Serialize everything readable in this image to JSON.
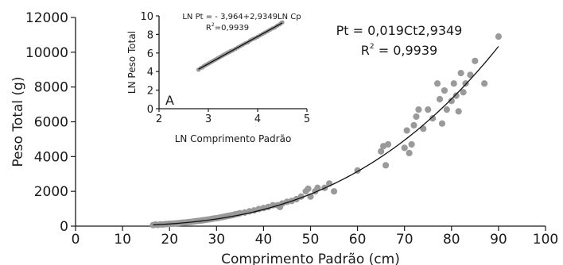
{
  "chart_data": [
    {
      "type": "scatter",
      "xlabel": "Comprimento Padrão (cm)",
      "ylabel": "Peso Total (g)",
      "xlim": [
        0,
        100
      ],
      "ylim": [
        0,
        12000
      ],
      "xticks": [
        "0",
        "10",
        "20",
        "30",
        "40",
        "50",
        "60",
        "70",
        "80",
        "90",
        "100"
      ],
      "yticks": [
        "0",
        "2000",
        "4000",
        "6000",
        "8000",
        "10000",
        "12000"
      ],
      "equation_line1": "Pt = 0,019Ct2,9349",
      "equation_r2_prefix": "R",
      "equation_r2_sup": "2",
      "equation_r2_value": " = 0,9939",
      "fit": {
        "type": "power",
        "a": 0.019,
        "b": 2.9349,
        "x_from": 16.5,
        "x_to": 90
      },
      "series": [
        {
          "points": [
            [
              16.5,
              60
            ],
            [
              17,
              90
            ],
            [
              17.5,
              70
            ],
            [
              18,
              100
            ],
            [
              18.5,
              90
            ],
            [
              19,
              110
            ],
            [
              19.5,
              120
            ],
            [
              20,
              130
            ],
            [
              20.5,
              140
            ],
            [
              21,
              150
            ],
            [
              21.5,
              160
            ],
            [
              22,
              170
            ],
            [
              22.5,
              190
            ],
            [
              23,
              200
            ],
            [
              23.5,
              210
            ],
            [
              24,
              230
            ],
            [
              24.5,
              240
            ],
            [
              25,
              260
            ],
            [
              25.5,
              280
            ],
            [
              26,
              300
            ],
            [
              26.5,
              310
            ],
            [
              27,
              330
            ],
            [
              27.5,
              350
            ],
            [
              28,
              370
            ],
            [
              28.5,
              390
            ],
            [
              29,
              420
            ],
            [
              29.5,
              440
            ],
            [
              30,
              460
            ],
            [
              30.5,
              480
            ],
            [
              31,
              510
            ],
            [
              31.5,
              530
            ],
            [
              32,
              560
            ],
            [
              32.5,
              590
            ],
            [
              33,
              610
            ],
            [
              33.5,
              640
            ],
            [
              34,
              680
            ],
            [
              34.5,
              700
            ],
            [
              35,
              740
            ],
            [
              36,
              780
            ],
            [
              37,
              850
            ],
            [
              38,
              900
            ],
            [
              39,
              980
            ],
            [
              40,
              1040
            ],
            [
              41,
              1100
            ],
            [
              42,
              1200
            ],
            [
              43,
              1200
            ],
            [
              43.5,
              1100
            ],
            [
              44,
              1300
            ],
            [
              45,
              1400
            ],
            [
              46,
              1450
            ],
            [
              47,
              1550
            ],
            [
              48,
              1700
            ],
            [
              49,
              2000
            ],
            [
              49.5,
              2150
            ],
            [
              50,
              1700
            ],
            [
              51,
              2000
            ],
            [
              51.5,
              2200
            ],
            [
              53,
              2200
            ],
            [
              54,
              2450
            ],
            [
              55,
              2000
            ],
            [
              60,
              3200
            ],
            [
              65,
              4300
            ],
            [
              65.5,
              4600
            ],
            [
              66,
              3500
            ],
            [
              66.5,
              4700
            ],
            [
              70,
              4500
            ],
            [
              70.5,
              5500
            ],
            [
              71,
              4200
            ],
            [
              71.5,
              4700
            ],
            [
              72,
              5800
            ],
            [
              72.5,
              6300
            ],
            [
              73,
              6700
            ],
            [
              74,
              5600
            ],
            [
              75,
              6700
            ],
            [
              76,
              6200
            ],
            [
              77,
              8200
            ],
            [
              77.5,
              7300
            ],
            [
              78,
              5900
            ],
            [
              78.5,
              7800
            ],
            [
              79,
              6700
            ],
            [
              80,
              7200
            ],
            [
              80.5,
              8200
            ],
            [
              81,
              7500
            ],
            [
              81.5,
              6600
            ],
            [
              82,
              8800
            ],
            [
              82.5,
              7700
            ],
            [
              83,
              8200
            ],
            [
              84,
              8700
            ],
            [
              85,
              9500
            ],
            [
              87,
              8200
            ],
            [
              90,
              10900
            ]
          ]
        }
      ]
    },
    {
      "type": "scatter",
      "panel_label": "A",
      "xlabel": "LN Comprimento Padrão",
      "ylabel": "LN Peso Total",
      "xlim": [
        2,
        5
      ],
      "ylim": [
        0,
        10
      ],
      "xticks": [
        "2",
        "3",
        "4",
        "5"
      ],
      "yticks": [
        "0",
        "2",
        "4",
        "6",
        "8",
        "10"
      ],
      "equation_line1": "LN Pt = - 3,964+2,9349LN Cp",
      "equation_r2_prefix": "R",
      "equation_r2_sup": "2",
      "equation_r2_value": "=0,9939",
      "fit": {
        "type": "linear",
        "intercept": -3.964,
        "slope": 2.9349,
        "x_from": 2.8,
        "x_to": 4.5
      },
      "series": [
        {
          "points": [
            [
              2.8,
              4.2
            ],
            [
              2.85,
              4.4
            ],
            [
              2.88,
              4.45
            ],
            [
              2.9,
              4.55
            ],
            [
              2.93,
              4.65
            ],
            [
              2.95,
              4.7
            ],
            [
              2.98,
              4.8
            ],
            [
              3.0,
              4.85
            ],
            [
              3.03,
              4.95
            ],
            [
              3.05,
              5.0
            ],
            [
              3.08,
              5.1
            ],
            [
              3.1,
              5.15
            ],
            [
              3.13,
              5.25
            ],
            [
              3.15,
              5.3
            ],
            [
              3.18,
              5.4
            ],
            [
              3.2,
              5.45
            ],
            [
              3.23,
              5.55
            ],
            [
              3.25,
              5.6
            ],
            [
              3.28,
              5.7
            ],
            [
              3.3,
              5.75
            ],
            [
              3.33,
              5.85
            ],
            [
              3.35,
              5.9
            ],
            [
              3.38,
              6.0
            ],
            [
              3.4,
              6.05
            ],
            [
              3.43,
              6.1
            ],
            [
              3.45,
              6.2
            ],
            [
              3.48,
              6.25
            ],
            [
              3.5,
              6.3
            ],
            [
              3.55,
              6.45
            ],
            [
              3.6,
              6.6
            ],
            [
              3.65,
              6.75
            ],
            [
              3.7,
              6.9
            ],
            [
              3.75,
              7.05
            ],
            [
              3.8,
              7.15
            ],
            [
              3.85,
              7.35
            ],
            [
              3.9,
              7.5
            ],
            [
              3.95,
              7.6
            ],
            [
              4.0,
              7.75
            ],
            [
              4.05,
              7.9
            ],
            [
              4.1,
              8.05
            ],
            [
              4.15,
              8.2
            ],
            [
              4.2,
              8.35
            ],
            [
              4.25,
              8.5
            ],
            [
              4.3,
              8.65
            ],
            [
              4.35,
              8.75
            ],
            [
              4.4,
              8.95
            ],
            [
              4.45,
              9.1
            ],
            [
              4.48,
              9.25
            ],
            [
              4.5,
              9.3
            ]
          ]
        }
      ]
    }
  ]
}
